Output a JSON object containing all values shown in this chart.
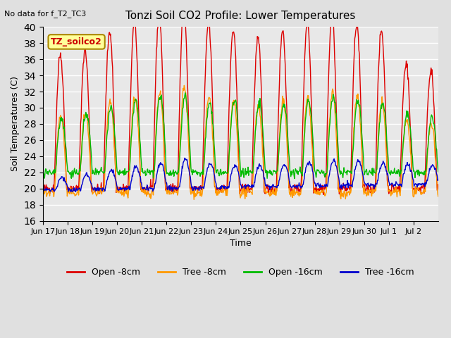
{
  "title": "Tonzi Soil CO2 Profile: Lower Temperatures",
  "subtitle": "No data for f_T2_TC3",
  "ylabel": "Soil Temperatures (C)",
  "xlabel": "Time",
  "ylim": [
    16,
    40
  ],
  "yticks": [
    16,
    18,
    20,
    22,
    24,
    26,
    28,
    30,
    32,
    34,
    36,
    38,
    40
  ],
  "xtick_labels": [
    "Jun 17",
    "Jun 18",
    "Jun 19",
    "Jun 20",
    "Jun 21",
    "Jun 22",
    "Jun 23",
    "Jun 24",
    "Jun 25",
    "Jun 26",
    "Jun 27",
    "Jun 28",
    "Jun 29",
    "Jun 30",
    "Jul 1",
    "Jul 2"
  ],
  "legend_labels": [
    "Open -8cm",
    "Tree -8cm",
    "Open -16cm",
    "Tree -16cm"
  ],
  "line_colors": [
    "#dd0000",
    "#ff9900",
    "#00bb00",
    "#0000cc"
  ],
  "annotation_text": "TZ_soilco2",
  "annotation_box_color": "#ffff99",
  "annotation_border_color": "#aa8800",
  "bg_color": "#e0e0e0",
  "plot_bg_color": "#e8e8e8",
  "grid_color": "#ffffff",
  "n_days": 16,
  "pts_per_day": 48
}
